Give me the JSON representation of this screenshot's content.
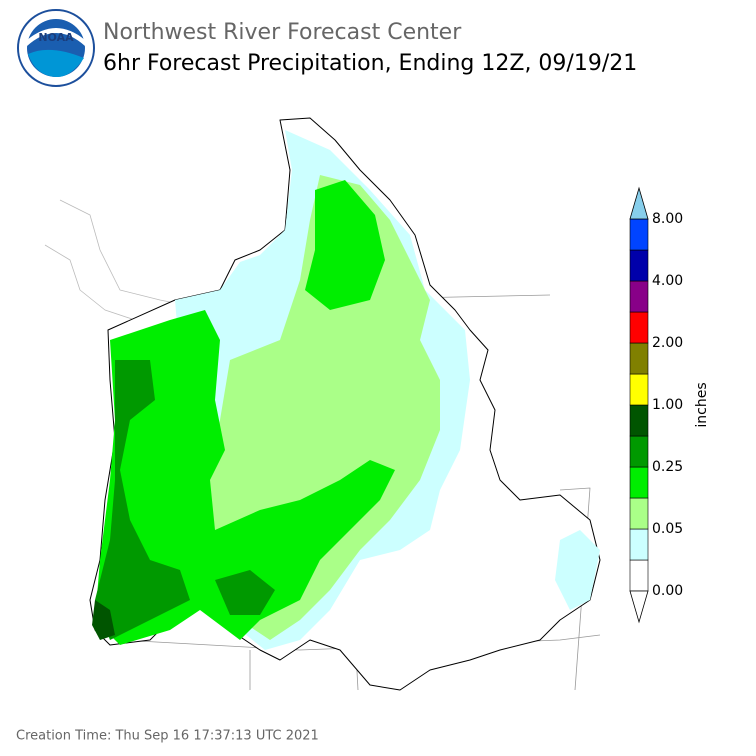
{
  "header": {
    "title": "Northwest River Forecast Center",
    "subtitle": "6hr Forecast Precipitation, Ending 12Z, 09/19/21",
    "logo_text": "NOAA"
  },
  "legend": {
    "unit": "inches",
    "labels": [
      "0.00",
      "0.05",
      "0.25",
      "1.00",
      "2.00",
      "4.00",
      "8.00"
    ],
    "colors": [
      "#ffffff",
      "#ccffff",
      "#aaff88",
      "#00ee00",
      "#009900",
      "#005500",
      "#ffff00",
      "#808000",
      "#ff0000",
      "#880088",
      "#0000aa",
      "#0044ff"
    ],
    "under_color": "#ffffff",
    "over_color": "#87ceeb"
  },
  "footer": {
    "creation_time": "Creation Time: Thu Sep 16 17:37:13 UTC 2021"
  }
}
